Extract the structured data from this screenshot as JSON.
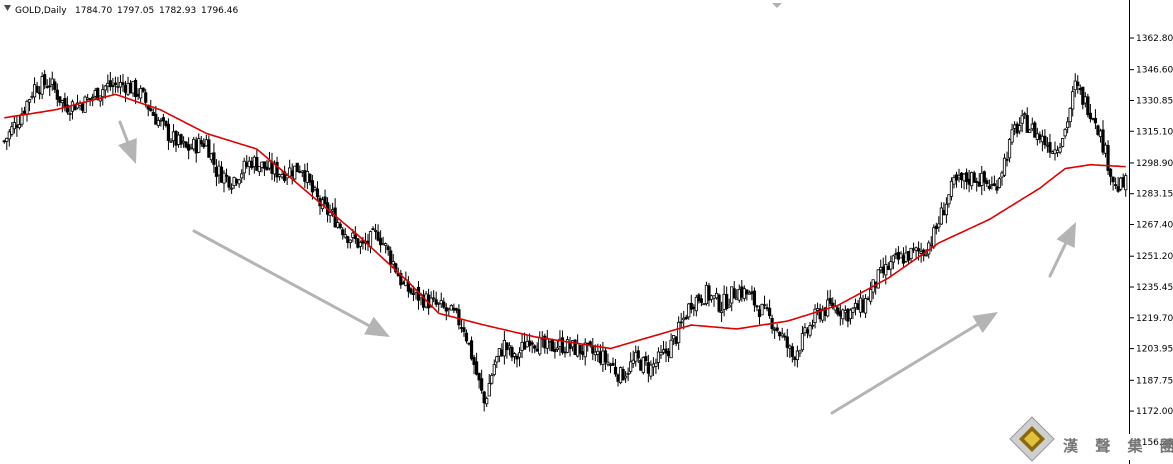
{
  "header": {
    "symbol": "GOLD,Daily",
    "open": "1784.70",
    "high": "1797.05",
    "low": "1782.93",
    "close": "1796.46"
  },
  "watermark": {
    "text": "漢 聲 集 團"
  },
  "colors": {
    "candle": "#000000",
    "moving_average": "#e00000",
    "arrow": "#b4b4b4",
    "axis": "#000000"
  },
  "chart_data": {
    "type": "candlestick",
    "ylim": [
      1148.0,
      1372.0
    ],
    "yticks": [
      "1362.80",
      "1346.60",
      "1330.85",
      "1315.10",
      "1298.90",
      "1283.15",
      "1267.40",
      "1251.20",
      "1235.45",
      "1219.70",
      "1203.95",
      "1187.75",
      "1172.00",
      "1156.25"
    ],
    "grid": false,
    "annotations": [
      "down-arrow",
      "down-arrow",
      "up-arrow",
      "up-arrow"
    ],
    "close_path": [
      [
        0,
        1310
      ],
      [
        6,
        1322
      ],
      [
        12,
        1338
      ],
      [
        18,
        1340
      ],
      [
        24,
        1328
      ],
      [
        32,
        1330
      ],
      [
        40,
        1338
      ],
      [
        48,
        1339
      ],
      [
        54,
        1334
      ],
      [
        60,
        1322
      ],
      [
        66,
        1312
      ],
      [
        72,
        1306
      ],
      [
        80,
        1310
      ],
      [
        84,
        1295
      ],
      [
        90,
        1290
      ],
      [
        98,
        1300
      ],
      [
        104,
        1296
      ],
      [
        110,
        1294
      ],
      [
        118,
        1297
      ],
      [
        122,
        1284
      ],
      [
        126,
        1276
      ],
      [
        130,
        1272
      ],
      [
        136,
        1262
      ],
      [
        142,
        1256
      ],
      [
        148,
        1263
      ],
      [
        154,
        1248
      ],
      [
        158,
        1236
      ],
      [
        162,
        1232
      ],
      [
        168,
        1228
      ],
      [
        174,
        1224
      ],
      [
        178,
        1221
      ],
      [
        182,
        1215
      ],
      [
        186,
        1196
      ],
      [
        190,
        1176
      ],
      [
        194,
        1196
      ],
      [
        198,
        1206
      ],
      [
        202,
        1198
      ],
      [
        208,
        1210
      ],
      [
        214,
        1204
      ],
      [
        220,
        1206
      ],
      [
        226,
        1204
      ],
      [
        232,
        1202
      ],
      [
        236,
        1200
      ],
      [
        240,
        1196
      ],
      [
        244,
        1190
      ],
      [
        250,
        1198
      ],
      [
        256,
        1194
      ],
      [
        262,
        1202
      ],
      [
        266,
        1210
      ],
      [
        272,
        1228
      ],
      [
        278,
        1232
      ],
      [
        284,
        1226
      ],
      [
        290,
        1234
      ],
      [
        294,
        1232
      ],
      [
        298,
        1226
      ],
      [
        304,
        1218
      ],
      [
        308,
        1210
      ],
      [
        312,
        1200
      ],
      [
        316,
        1208
      ],
      [
        322,
        1222
      ],
      [
        328,
        1226
      ],
      [
        334,
        1222
      ],
      [
        340,
        1226
      ],
      [
        346,
        1240
      ],
      [
        352,
        1248
      ],
      [
        358,
        1252
      ],
      [
        364,
        1254
      ],
      [
        368,
        1262
      ],
      [
        372,
        1276
      ],
      [
        376,
        1288
      ],
      [
        380,
        1290
      ],
      [
        384,
        1292
      ],
      [
        388,
        1289
      ],
      [
        392,
        1286
      ],
      [
        396,
        1300
      ],
      [
        400,
        1316
      ],
      [
        404,
        1320
      ],
      [
        410,
        1312
      ],
      [
        416,
        1306
      ],
      [
        420,
        1316
      ],
      [
        424,
        1338
      ],
      [
        428,
        1330
      ],
      [
        432,
        1322
      ],
      [
        436,
        1304
      ],
      [
        440,
        1286
      ],
      [
        444,
        1288
      ]
    ],
    "moving_average": [
      [
        0,
        1322
      ],
      [
        20,
        1326
      ],
      [
        44,
        1334
      ],
      [
        62,
        1326
      ],
      [
        80,
        1314
      ],
      [
        100,
        1306
      ],
      [
        120,
        1284
      ],
      [
        140,
        1262
      ],
      [
        160,
        1238
      ],
      [
        172,
        1222
      ],
      [
        190,
        1216
      ],
      [
        210,
        1210
      ],
      [
        230,
        1206
      ],
      [
        240,
        1204
      ],
      [
        256,
        1210
      ],
      [
        272,
        1216
      ],
      [
        290,
        1214
      ],
      [
        310,
        1218
      ],
      [
        330,
        1226
      ],
      [
        350,
        1240
      ],
      [
        370,
        1258
      ],
      [
        390,
        1270
      ],
      [
        410,
        1286
      ],
      [
        420,
        1296
      ],
      [
        430,
        1298
      ],
      [
        444,
        1297
      ]
    ]
  }
}
